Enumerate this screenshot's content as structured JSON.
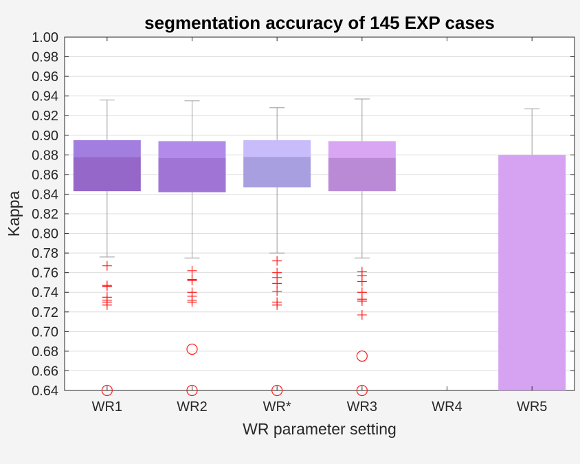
{
  "chart_data": {
    "type": "box",
    "title": "segmentation accuracy of 145 EXP cases",
    "xlabel": "WR parameter setting",
    "ylabel": "Kappa",
    "ylim": [
      0.64,
      1.0
    ],
    "yticks": [
      "0.64",
      "0.66",
      "0.68",
      "0.70",
      "0.72",
      "0.74",
      "0.76",
      "0.78",
      "0.80",
      "0.82",
      "0.84",
      "0.86",
      "0.88",
      "0.90",
      "0.92",
      "0.94",
      "0.96",
      "0.98",
      "1.00"
    ],
    "grid": true,
    "categories": [
      "WR1",
      "WR2",
      "WR*",
      "WR3",
      "WR4",
      "WR5"
    ],
    "boxes": [
      {
        "category": "WR1",
        "whisker_low": 0.776,
        "q1": 0.843,
        "median": 0.878,
        "q3": 0.895,
        "whisker_high": 0.936,
        "outliers": [
          0.767,
          0.747,
          0.746,
          0.735,
          0.732,
          0.73,
          0.727
        ],
        "extreme_outliers": [
          0.64
        ],
        "upper_color": "#a27ee0",
        "lower_color": "#9467c8"
      },
      {
        "category": "WR2",
        "whisker_low": 0.775,
        "q1": 0.842,
        "median": 0.877,
        "q3": 0.894,
        "whisker_high": 0.935,
        "outliers": [
          0.762,
          0.753,
          0.752,
          0.74,
          0.736,
          0.732,
          0.73
        ],
        "extreme_outliers": [
          0.682,
          0.64
        ],
        "upper_color": "#b28bea",
        "lower_color": "#9f74d4"
      },
      {
        "category": "WR*",
        "whisker_low": 0.78,
        "q1": 0.847,
        "median": 0.878,
        "q3": 0.895,
        "whisker_high": 0.928,
        "outliers": [
          0.772,
          0.76,
          0.755,
          0.749,
          0.741,
          0.73,
          0.727
        ],
        "extreme_outliers": [
          0.64
        ],
        "upper_color": "#c9bcfa",
        "lower_color": "#a79fe0"
      },
      {
        "category": "WR3",
        "whisker_low": 0.775,
        "q1": 0.843,
        "median": 0.877,
        "q3": 0.894,
        "whisker_high": 0.937,
        "outliers": [
          0.761,
          0.757,
          0.751,
          0.74,
          0.733,
          0.731,
          0.717
        ],
        "extreme_outliers": [
          0.675,
          0.64
        ],
        "upper_color": "#d8a6f2",
        "lower_color": "#bb8ad6"
      },
      {
        "category": "WR4"
      },
      {
        "category": "WR5",
        "whisker_low": 0.64,
        "q1": 0.64,
        "median": 0.88,
        "q3": 0.88,
        "whisker_high": 0.927,
        "outliers": [],
        "extreme_outliers": [],
        "upper_color": "#d6a3f2",
        "lower_color": "#d6a3f2"
      }
    ],
    "colors": {
      "whisker": "#9a9a9a",
      "outlier": "#ff1a1a",
      "grid": "#dcdcdc",
      "axis": "#262626"
    }
  }
}
